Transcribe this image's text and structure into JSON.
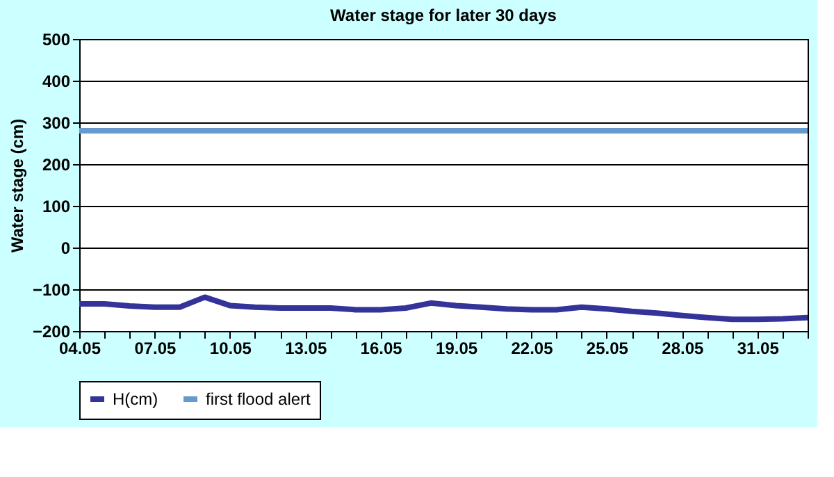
{
  "chart_data": {
    "type": "line",
    "title": "Water stage for later 30 days",
    "ylabel": "Water stage (cm)",
    "categories": [
      "04.05",
      null,
      null,
      "07.05",
      null,
      null,
      "10.05",
      null,
      null,
      "13.05",
      null,
      null,
      "16.05",
      null,
      null,
      "19.05",
      null,
      null,
      "22.05",
      null,
      null,
      "25.05",
      null,
      null,
      "28.05",
      null,
      null,
      "31.05",
      null,
      null
    ],
    "series": [
      {
        "name": "H(cm)",
        "color": "#333399",
        "values": [
          -135,
          -135,
          -140,
          -143,
          -143,
          -119,
          -139,
          -143,
          -145,
          -145,
          -145,
          -149,
          -149,
          -145,
          -133,
          -139,
          -143,
          -147,
          -149,
          -149,
          -143,
          -147,
          -153,
          -157,
          -163,
          -168,
          -172,
          -172,
          -171,
          -168
        ]
      },
      {
        "name": "first flood alert",
        "color": "#6699cc",
        "values": [
          280,
          280,
          280,
          280,
          280,
          280,
          280,
          280,
          280,
          280,
          280,
          280,
          280,
          280,
          280,
          280,
          280,
          280,
          280,
          280,
          280,
          280,
          280,
          280,
          280,
          280,
          280,
          280,
          280,
          280
        ]
      }
    ],
    "ylim": [
      -200,
      500
    ],
    "yticks": [
      -200,
      -100,
      0,
      100,
      200,
      300,
      400,
      500
    ],
    "grid": "y",
    "legend": "bottom",
    "marker": "none",
    "line_style": "solid"
  }
}
